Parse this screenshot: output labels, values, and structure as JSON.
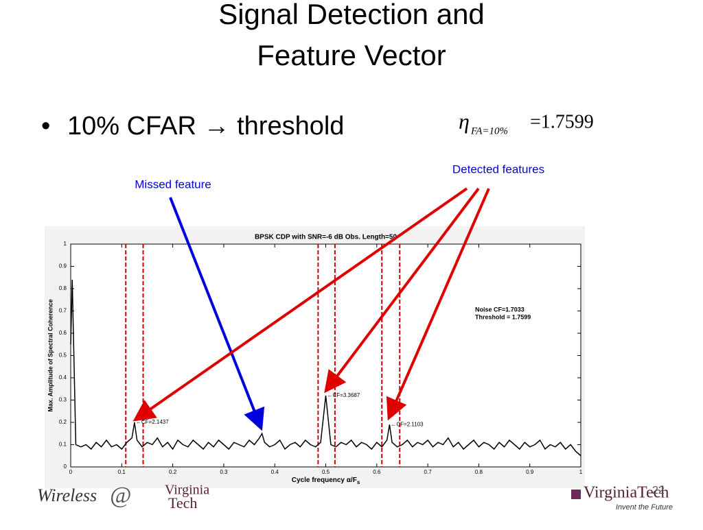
{
  "slide": {
    "title": [
      "Signal Detection and",
      "Feature Vector"
    ],
    "bullet": "10% CFAR",
    "bullet_arrow": "→",
    "bullet_tail": "threshold",
    "eq_symbol": "η",
    "eq_sub": "FA=10%",
    "eq_rhs": "=1.7599",
    "missed_label": "Missed feature",
    "detected_label": "Detected features",
    "footer_left": [
      "Wireless",
      "@",
      "Virginia",
      "Tech"
    ],
    "footer_right": [
      "VirginiaTech",
      "Invent the Future"
    ],
    "page": "22"
  },
  "chart_data": {
    "type": "line",
    "title": "BPSK CDP with SNR=-6 dB  Obs. Length=50",
    "xlabel": "Cycle frequency α/F",
    "xlabel_sub": "s",
    "ylabel": "Max. Amplitude of Spectral Coherence",
    "color": "#000000",
    "x": [
      0,
      0.003,
      0.01,
      0.02,
      0.03,
      0.04,
      0.05,
      0.06,
      0.07,
      0.08,
      0.09,
      0.1,
      0.11,
      0.12,
      0.125,
      0.13,
      0.14,
      0.15,
      0.16,
      0.17,
      0.18,
      0.19,
      0.2,
      0.21,
      0.22,
      0.23,
      0.24,
      0.25,
      0.26,
      0.27,
      0.28,
      0.29,
      0.3,
      0.31,
      0.32,
      0.33,
      0.34,
      0.35,
      0.36,
      0.37,
      0.375,
      0.38,
      0.39,
      0.4,
      0.41,
      0.42,
      0.43,
      0.44,
      0.45,
      0.46,
      0.47,
      0.48,
      0.49,
      0.5,
      0.51,
      0.52,
      0.53,
      0.54,
      0.55,
      0.56,
      0.57,
      0.58,
      0.59,
      0.6,
      0.61,
      0.62,
      0.625,
      0.63,
      0.64,
      0.65,
      0.66,
      0.67,
      0.68,
      0.69,
      0.7,
      0.71,
      0.72,
      0.73,
      0.74,
      0.75,
      0.76,
      0.77,
      0.78,
      0.79,
      0.8,
      0.81,
      0.82,
      0.83,
      0.84,
      0.85,
      0.86,
      0.87,
      0.88,
      0.89,
      0.9,
      0.91,
      0.92,
      0.93,
      0.94,
      0.95,
      0.96,
      0.97,
      0.98,
      0.99,
      1
    ],
    "values": [
      0.55,
      0.84,
      0.1,
      0.09,
      0.1,
      0.08,
      0.11,
      0.09,
      0.12,
      0.09,
      0.1,
      0.08,
      0.11,
      0.13,
      0.2,
      0.12,
      0.09,
      0.11,
      0.1,
      0.13,
      0.09,
      0.11,
      0.08,
      0.12,
      0.1,
      0.09,
      0.12,
      0.1,
      0.08,
      0.11,
      0.09,
      0.12,
      0.1,
      0.08,
      0.11,
      0.1,
      0.09,
      0.12,
      0.1,
      0.13,
      0.15,
      0.11,
      0.09,
      0.1,
      0.12,
      0.08,
      0.1,
      0.11,
      0.09,
      0.12,
      0.1,
      0.09,
      0.11,
      0.32,
      0.1,
      0.09,
      0.11,
      0.1,
      0.12,
      0.09,
      0.11,
      0.1,
      0.08,
      0.11,
      0.09,
      0.12,
      0.19,
      0.11,
      0.09,
      0.1,
      0.12,
      0.09,
      0.11,
      0.1,
      0.12,
      0.09,
      0.11,
      0.1,
      0.13,
      0.09,
      0.11,
      0.08,
      0.1,
      0.12,
      0.09,
      0.11,
      0.1,
      0.08,
      0.11,
      0.09,
      0.12,
      0.1,
      0.08,
      0.11,
      0.09,
      0.1,
      0.12,
      0.08,
      0.1,
      0.09,
      0.11,
      0.08,
      0.1,
      0.07,
      0.05
    ],
    "xlim": [
      0,
      1
    ],
    "ylim": [
      0,
      1
    ],
    "xticks": [
      0,
      0.1,
      0.2,
      0.3,
      0.4,
      0.5,
      0.6,
      0.7,
      0.8,
      0.9,
      1
    ],
    "yticks": [
      0,
      0.1,
      0.2,
      0.3,
      0.4,
      0.5,
      0.6,
      0.7,
      0.8,
      0.9,
      1
    ],
    "threshold_lines": {
      "color": "#cc0000",
      "x": [
        0.108,
        0.142,
        0.485,
        0.518,
        0.61,
        0.645
      ]
    },
    "annotations": [
      {
        "text": "←CF=2.1437",
        "x": 0.125,
        "y": 0.2
      },
      {
        "text": "←CF=3.3687",
        "x": 0.5,
        "y": 0.32
      },
      {
        "text": "←CF=2.1103",
        "x": 0.625,
        "y": 0.19
      }
    ],
    "info": [
      "Noise CF=1.7033",
      "Threshold = 1.7599"
    ]
  }
}
